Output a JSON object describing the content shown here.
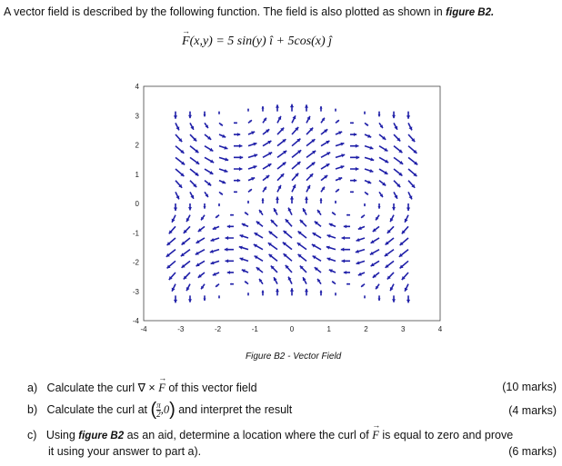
{
  "intro": {
    "text": "A vector field is described by the following function. The field is also plotted as shown in",
    "fig_ref": "figure B2."
  },
  "formula": {
    "lhs": "F",
    "args": "(x,y) = 5 sin(y) î + 5cos(x) ĵ"
  },
  "caption": "Figure B2 - Vector Field",
  "questions": [
    {
      "label": "a)",
      "pre": "Calculate the curl ∇ × ",
      "vec": "F",
      "post": " of this vector field",
      "marks": "(10 marks)"
    },
    {
      "label": "b)",
      "pre": "Calculate the curl at ",
      "frac_num": "π",
      "frac_den": "2",
      "point_rest": ",0",
      "post": " and interpret the result",
      "marks": "(4 marks)"
    },
    {
      "label": "c)",
      "pre": "Using ",
      "fig_ref": "figure B2",
      "mid": " as an aid, determine a location where the curl of ",
      "vec": "F",
      "post": " is equal to zero and prove",
      "line2": "it using your answer to part a).",
      "marks": "(6 marks)"
    }
  ],
  "chart_data": {
    "type": "quiver",
    "u": "5*sin(y)",
    "v": "5*cos(x)",
    "x_range": [
      -3.1416,
      3.1416
    ],
    "y_range": [
      -3.1416,
      3.1416
    ],
    "grid_points_per_axis": 17,
    "xlim": [
      -4,
      4
    ],
    "ylim": [
      -4,
      4
    ],
    "xticks": [
      -4,
      -3,
      -2,
      -1,
      0,
      1,
      2,
      3,
      4
    ],
    "yticks": [
      -4,
      -3,
      -2,
      -1,
      0,
      1,
      2,
      3,
      4
    ],
    "grid": false,
    "arrow_color": "#1f1fa8"
  }
}
